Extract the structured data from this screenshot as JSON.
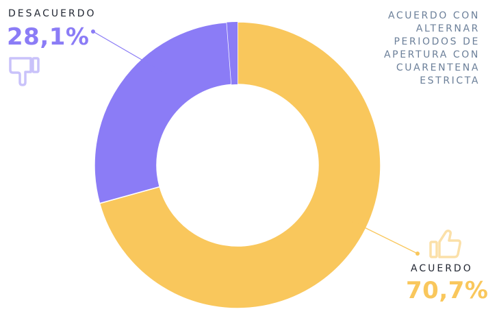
{
  "colors": {
    "agree": "#f9c75c",
    "disagree": "#8b7cf6",
    "title": "#6b7f99",
    "label": "#1f2430"
  },
  "title_lines": [
    "ACUERDO CON",
    "ALTERNAR",
    "PERIODOS DE",
    "APERTURA CON",
    "CUARENTENA",
    "ESTRICTA"
  ],
  "labels": {
    "disagree_name": "DESACUERDO",
    "disagree_pct": "28,1%",
    "agree_name": "ACUERDO",
    "agree_pct": "70,7%"
  },
  "icons": {
    "disagree": "thumbs-down-icon",
    "agree": "thumbs-up-icon"
  },
  "chart_data": {
    "type": "pie",
    "variant": "donut",
    "slices": [
      {
        "name": "ACUERDO",
        "value": 70.7,
        "label": "70,7%",
        "color": "#f9c75c"
      },
      {
        "name": "DESACUERDO",
        "value": 28.1,
        "label": "28,1%",
        "color": "#8b7cf6"
      }
    ]
  }
}
